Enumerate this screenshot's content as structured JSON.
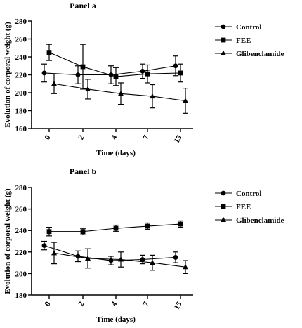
{
  "chart_data": [
    {
      "type": "line",
      "panel_label": "Panel a",
      "xlabel": "Time (days)",
      "ylabel": "Evolution of corporal weight (g)",
      "categories": [
        "0",
        "2",
        "4",
        "7",
        "15"
      ],
      "ylim": [
        160,
        280
      ],
      "yticks": [
        160,
        180,
        200,
        220,
        240,
        260,
        280
      ],
      "grid": false,
      "legend_position": "right",
      "series": [
        {
          "name": "Control",
          "marker": "circle",
          "values": [
            222,
            220,
            220,
            224,
            230
          ],
          "errors": [
            10,
            10,
            10,
            8,
            11
          ]
        },
        {
          "name": "FEE",
          "marker": "square",
          "values": [
            245,
            229,
            218,
            221,
            222
          ],
          "errors": [
            9,
            25,
            10,
            10,
            10
          ]
        },
        {
          "name": "Glibenclamide",
          "marker": "triangle",
          "values": [
            210,
            204,
            199,
            196,
            191
          ],
          "errors": [
            11,
            11,
            12,
            13,
            14
          ]
        }
      ]
    },
    {
      "type": "line",
      "panel_label": "Panel b",
      "xlabel": "Time (days)",
      "ylabel": "Evolution of corporal weight (g)",
      "categories": [
        "0",
        "2",
        "4",
        "7",
        "15"
      ],
      "ylim": [
        180,
        280
      ],
      "yticks": [
        180,
        200,
        220,
        240,
        260,
        280
      ],
      "grid": false,
      "legend_position": "right",
      "series": [
        {
          "name": "Control",
          "marker": "circle",
          "values": [
            226,
            216,
            212,
            213,
            215
          ],
          "errors": [
            4,
            5,
            4,
            4,
            5
          ]
        },
        {
          "name": "FEE",
          "marker": "square",
          "values": [
            239,
            239,
            242,
            244,
            246
          ],
          "errors": [
            4,
            3,
            3,
            3,
            3
          ]
        },
        {
          "name": "Glibenclamide",
          "marker": "triangle",
          "values": [
            219,
            214,
            213,
            210,
            206
          ],
          "errors": [
            10,
            9,
            7,
            7,
            6
          ]
        }
      ]
    }
  ]
}
